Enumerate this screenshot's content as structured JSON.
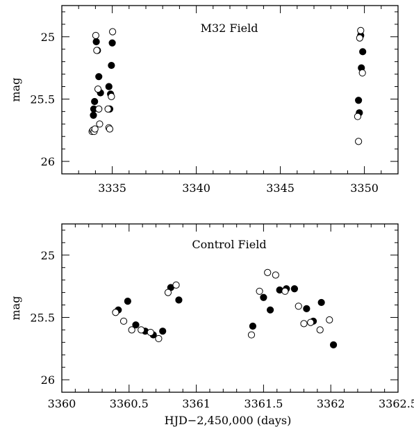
{
  "chart_data": [
    {
      "type": "scatter",
      "title": "M32 Field",
      "xlabel": "",
      "ylabel": "mag",
      "xlim": [
        3332,
        3352
      ],
      "ylim": [
        26.1,
        24.75
      ],
      "y_inverted": true,
      "x_ticks": [
        3335,
        3340,
        3345,
        3350
      ],
      "y_ticks": [
        25,
        25.5,
        26
      ],
      "series": [
        {
          "marker": "filled",
          "x": [
            3333.88,
            3333.9,
            3333.95,
            3334.05,
            3334.12,
            3334.2,
            3334.3,
            3334.8,
            3334.85,
            3334.9,
            3334.95,
            3335.0,
            3349.65,
            3349.7,
            3349.78,
            3349.82,
            3349.9
          ],
          "y": [
            25.63,
            25.58,
            25.52,
            25.04,
            25.11,
            25.32,
            25.45,
            25.4,
            25.58,
            25.46,
            25.23,
            25.05,
            25.51,
            25.61,
            24.99,
            25.25,
            25.12
          ]
        },
        {
          "marker": "open",
          "x": [
            3333.8,
            3333.85,
            3333.92,
            3333.97,
            3334.02,
            3334.08,
            3334.15,
            3334.2,
            3334.25,
            3334.75,
            3334.8,
            3334.85,
            3334.95,
            3335.02,
            3349.6,
            3349.65,
            3349.72,
            3349.78,
            3349.88
          ],
          "y": [
            25.76,
            25.75,
            25.76,
            25.74,
            24.99,
            25.11,
            25.42,
            25.58,
            25.7,
            25.58,
            25.73,
            25.74,
            25.48,
            24.96,
            25.64,
            25.84,
            25.01,
            24.95,
            25.29
          ]
        }
      ]
    },
    {
      "type": "scatter",
      "title": "Control Field",
      "xlabel": "HJD−2,450,000 (days)",
      "ylabel": "mag",
      "xlim": [
        3360,
        3362.5
      ],
      "ylim": [
        26.1,
        24.75
      ],
      "y_inverted": true,
      "x_ticks": [
        3360,
        3360.5,
        3361,
        3361.5,
        3362,
        3362.5
      ],
      "x_tick_labels": [
        "3360",
        "3360.5",
        "3361",
        "3361.5",
        "3362",
        "3362.5"
      ],
      "y_ticks": [
        25,
        25.5,
        26
      ],
      "series": [
        {
          "marker": "filled",
          "x": [
            3360.42,
            3360.49,
            3360.55,
            3360.62,
            3360.68,
            3360.75,
            3360.81,
            3360.87,
            3361.42,
            3361.5,
            3361.55,
            3361.62,
            3361.67,
            3361.73,
            3361.82,
            3361.87,
            3361.93,
            3362.02
          ],
          "y": [
            25.44,
            25.37,
            25.56,
            25.61,
            25.64,
            25.61,
            25.26,
            25.36,
            25.57,
            25.34,
            25.44,
            25.28,
            25.27,
            25.27,
            25.43,
            25.53,
            25.38,
            25.72
          ]
        },
        {
          "marker": "open",
          "x": [
            3360.4,
            3360.46,
            3360.52,
            3360.59,
            3360.66,
            3360.72,
            3360.79,
            3360.85,
            3361.41,
            3361.47,
            3361.53,
            3361.59,
            3361.66,
            3361.76,
            3361.8,
            3361.85,
            3361.92,
            3361.99
          ],
          "y": [
            25.46,
            25.53,
            25.6,
            25.6,
            25.62,
            25.67,
            25.3,
            25.24,
            25.64,
            25.29,
            25.14,
            25.16,
            25.29,
            25.41,
            25.55,
            25.54,
            25.6,
            25.52
          ]
        }
      ]
    }
  ]
}
